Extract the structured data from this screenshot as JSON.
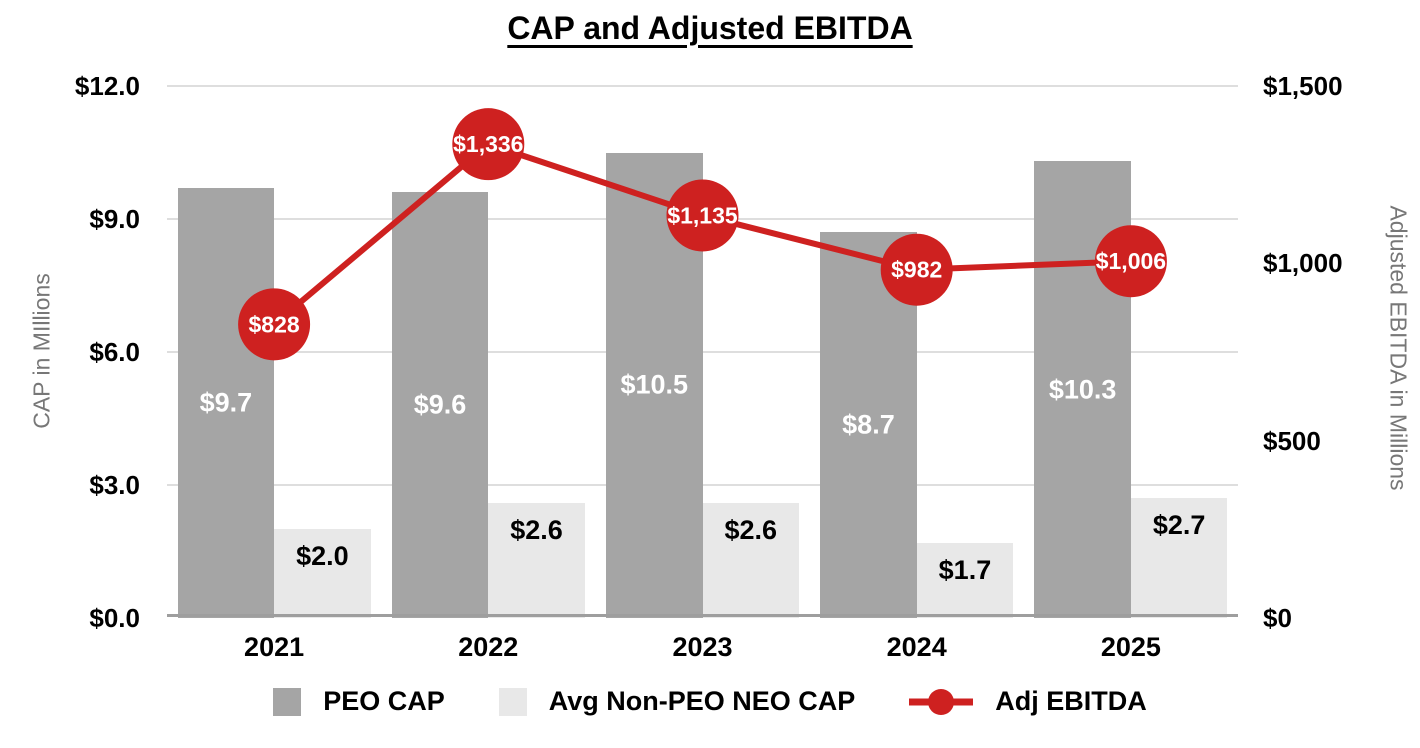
{
  "chart_data": {
    "type": "combo",
    "subtypes": [
      "bar",
      "line"
    ],
    "title": "CAP and Adjusted EBITDA",
    "categories": [
      "2021",
      "2022",
      "2023",
      "2024",
      "2025"
    ],
    "series": [
      {
        "name": "PEO CAP",
        "type": "bar",
        "axis": "left",
        "color": "#a5a5a5",
        "values": [
          9.7,
          9.6,
          10.5,
          8.7,
          10.3
        ],
        "labels": [
          "$9.7",
          "$9.6",
          "$10.5",
          "$8.7",
          "$10.3"
        ],
        "label_color": "#ffffff",
        "label_position": "center"
      },
      {
        "name": "Avg Non-PEO NEO CAP",
        "type": "bar",
        "axis": "left",
        "color": "#e8e8e8",
        "values": [
          2.0,
          2.6,
          2.6,
          1.7,
          2.7
        ],
        "labels": [
          "$2.0",
          "$2.6",
          "$2.6",
          "$1.7",
          "$2.7"
        ],
        "label_color": "#000000",
        "label_position": "inside-top"
      },
      {
        "name": "Adj EBITDA",
        "type": "line",
        "axis": "right",
        "color": "#ce2120",
        "values": [
          828,
          1336,
          1135,
          982,
          1006
        ],
        "labels": [
          "$828",
          "$1,336",
          "$1,135",
          "$982",
          "$1,006"
        ],
        "label_color": "#ffffff",
        "marker": "circle"
      }
    ],
    "left_axis": {
      "title": "CAP in MIllions",
      "ylim": [
        0,
        12
      ],
      "ticks": [
        {
          "value": 0,
          "label": "$0.0"
        },
        {
          "value": 3,
          "label": "$3.0"
        },
        {
          "value": 6,
          "label": "$6.0"
        },
        {
          "value": 9,
          "label": "$9.0"
        },
        {
          "value": 12,
          "label": "$12.0"
        }
      ]
    },
    "right_axis": {
      "title": "Adjusted EBITDA in Millions",
      "ylim": [
        0,
        1500
      ],
      "ticks": [
        {
          "value": 0,
          "label": "$0"
        },
        {
          "value": 500,
          "label": "$500"
        },
        {
          "value": 1000,
          "label": "$1,000"
        },
        {
          "value": 1500,
          "label": "$1,500"
        }
      ]
    },
    "grid": true,
    "legend_position": "bottom",
    "colors": {
      "grid": "#dedede",
      "baseline": "#9e9e9e",
      "axis_title_text": "#777777",
      "tick_text": "#000000"
    }
  }
}
